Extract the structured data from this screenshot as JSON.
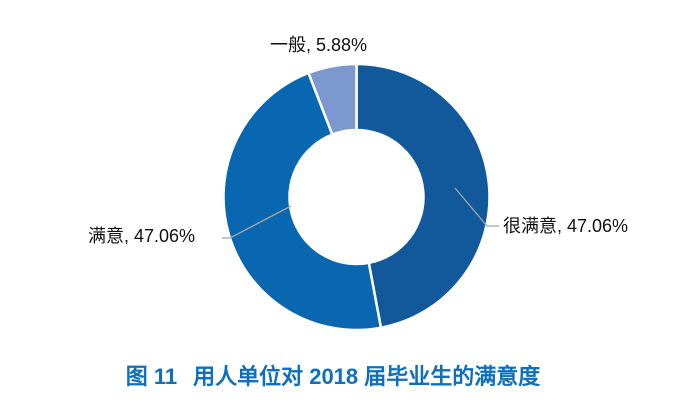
{
  "page": {
    "background": "#ffffff"
  },
  "chart_data": {
    "type": "pie",
    "subtype": "donut",
    "title": "图 11 用人单位对 2018 届毕业生的满意度",
    "categories": [
      "很满意",
      "满意",
      "一般"
    ],
    "values": [
      47.06,
      47.06,
      5.88
    ],
    "unit": "%",
    "colors": [
      "#11599b",
      "#0966b0",
      "#7d98ce"
    ],
    "start_angle_deg": 0,
    "direction": "clockwise",
    "legend": "none",
    "hole": true,
    "labels": [
      {
        "name": "very-satisfied",
        "text": "很满意, 47.06%"
      },
      {
        "name": "satisfied",
        "text": "满意, 47.06%"
      },
      {
        "name": "neutral",
        "text": "一般, 5.88%"
      }
    ],
    "leader_line_color": "#a6a6a6",
    "slice_gap_color": "#ffffff",
    "label_color": "#111111"
  },
  "caption": {
    "fig_label": "图 11",
    "text": "用人单位对 2018 届毕业生的满意度",
    "color": "#0d6fbe"
  }
}
